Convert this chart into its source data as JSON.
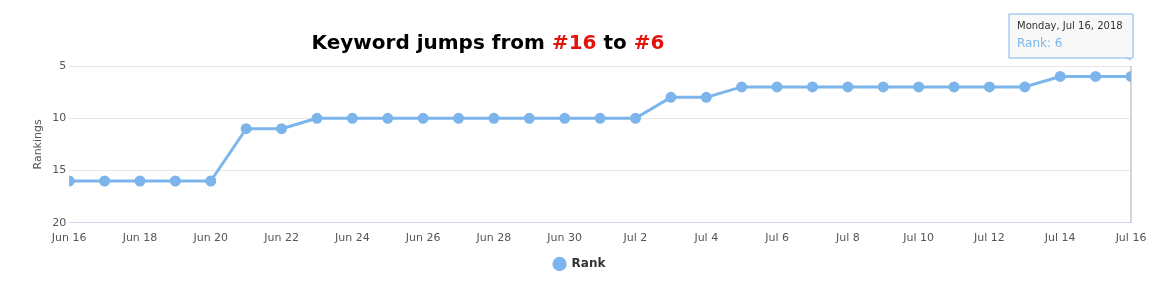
{
  "chart_data": {
    "type": "line",
    "title": "Keyword jumps from #16 to #6",
    "ylabel": "Rankings",
    "x": [
      "2018-06-16",
      "2018-06-17",
      "2018-06-18",
      "2018-06-19",
      "2018-06-20",
      "2018-06-21",
      "2018-06-22",
      "2018-06-23",
      "2018-06-24",
      "2018-06-25",
      "2018-06-26",
      "2018-06-27",
      "2018-06-28",
      "2018-06-29",
      "2018-06-30",
      "2018-07-01",
      "2018-07-02",
      "2018-07-03",
      "2018-07-04",
      "2018-07-05",
      "2018-07-06",
      "2018-07-07",
      "2018-07-08",
      "2018-07-09",
      "2018-07-10",
      "2018-07-11",
      "2018-07-12",
      "2018-07-13",
      "2018-07-14",
      "2018-07-15",
      "2018-07-16"
    ],
    "series": [
      {
        "name": "Rank",
        "color": "#7cb5ec",
        "values": [
          16,
          16,
          16,
          16,
          16,
          11,
          11,
          10,
          10,
          10,
          10,
          10,
          10,
          10,
          10,
          10,
          10,
          8,
          8,
          7,
          7,
          7,
          7,
          7,
          7,
          7,
          7,
          7,
          6,
          6,
          6
        ]
      }
    ],
    "ylim": [
      20,
      5
    ],
    "yticks": [
      5,
      10,
      15,
      20
    ],
    "xlim": [
      "2018-06-16",
      "2018-07-16"
    ],
    "xticks": [
      {
        "value": "2018-06-16",
        "label": "Jun 16"
      },
      {
        "value": "2018-06-18",
        "label": "Jun 18"
      },
      {
        "value": "2018-06-20",
        "label": "Jun 20"
      },
      {
        "value": "2018-06-22",
        "label": "Jun 22"
      },
      {
        "value": "2018-06-24",
        "label": "Jun 24"
      },
      {
        "value": "2018-06-26",
        "label": "Jun 26"
      },
      {
        "value": "2018-06-28",
        "label": "Jun 28"
      },
      {
        "value": "2018-06-30",
        "label": "Jun 30"
      },
      {
        "value": "2018-07-02",
        "label": "Jul 2"
      },
      {
        "value": "2018-07-04",
        "label": "Jul 4"
      },
      {
        "value": "2018-07-06",
        "label": "Jul 6"
      },
      {
        "value": "2018-07-08",
        "label": "Jul 8"
      },
      {
        "value": "2018-07-10",
        "label": "Jul 10"
      },
      {
        "value": "2018-07-12",
        "label": "Jul 12"
      },
      {
        "value": "2018-07-14",
        "label": "Jul 14"
      },
      {
        "value": "2018-07-16",
        "label": "Jul 16"
      }
    ],
    "annotations": [
      "Monday, Jul 16, 2018",
      "Rank: 6"
    ],
    "grid": "y",
    "legend": "bottom",
    "marker": "circle",
    "line_style": "solid"
  }
}
